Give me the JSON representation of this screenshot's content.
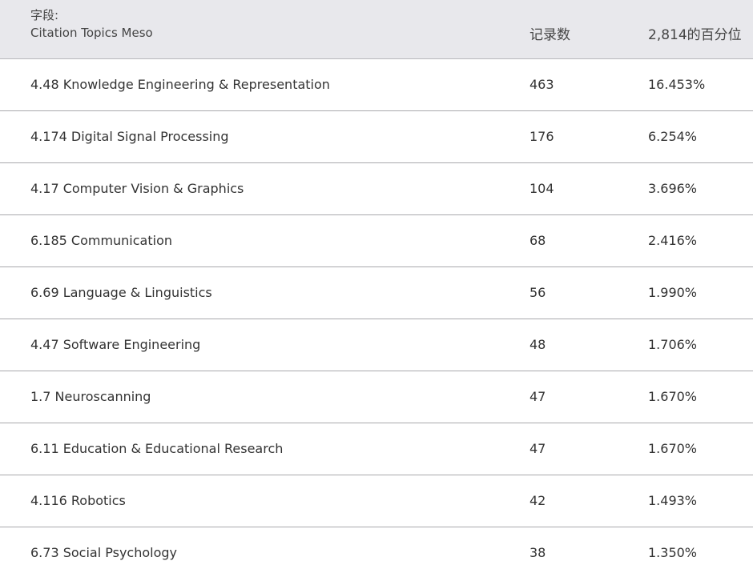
{
  "header": {
    "field_label": "字段:",
    "field_name": "Citation Topics Meso",
    "count_label": "记录数",
    "percent_label": "2,814的百分位"
  },
  "rows": [
    {
      "topic": "4.48 Knowledge Engineering & Representation",
      "count": "463",
      "percent": "16.453%"
    },
    {
      "topic": "4.174 Digital Signal Processing",
      "count": "176",
      "percent": "6.254%"
    },
    {
      "topic": "4.17 Computer Vision & Graphics",
      "count": "104",
      "percent": "3.696%"
    },
    {
      "topic": "6.185 Communication",
      "count": "68",
      "percent": "2.416%"
    },
    {
      "topic": "6.69 Language & Linguistics",
      "count": "56",
      "percent": "1.990%"
    },
    {
      "topic": "4.47 Software Engineering",
      "count": "48",
      "percent": "1.706%"
    },
    {
      "topic": "1.7 Neuroscanning",
      "count": "47",
      "percent": "1.670%"
    },
    {
      "topic": "6.11 Education & Educational Research",
      "count": "47",
      "percent": "1.670%"
    },
    {
      "topic": "4.116 Robotics",
      "count": "42",
      "percent": "1.493%"
    },
    {
      "topic": "6.73 Social Psychology",
      "count": "38",
      "percent": "1.350%"
    }
  ]
}
